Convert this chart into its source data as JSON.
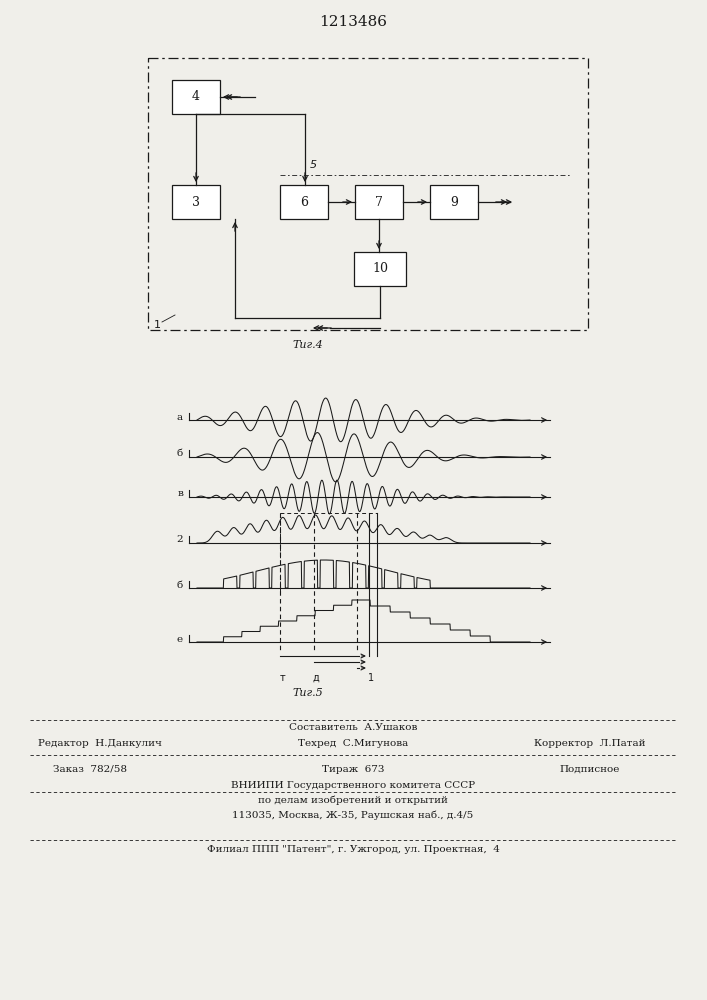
{
  "title": "1213486",
  "fig4_label": "Τиг.4",
  "fig5_label": "Τиг.5",
  "bg_color": "#f0efea",
  "line_color": "#1a1a1a",
  "footer": {
    "sostavitel": "Составитель  А.Ушаков",
    "redaktor": "Редактор  Н.Данкулич",
    "tehred": "Техред  С.Мигунова",
    "korrektor": "Корректор  Л.Патай",
    "zakaz": "Заказ  782/58",
    "tirazh": "Тираж  673",
    "podpisnoe": "Подписное",
    "vniipи": "ВНИИПИ Государственного комитета СССР",
    "podelam": "по делам изобретений и открытий",
    "addr": "113035, Москва, Ж-35, Раушская наб., д.4/5",
    "filial": "Филиал ППП \"Патент\", г. Ужгород, ул. Проектная,  4"
  }
}
